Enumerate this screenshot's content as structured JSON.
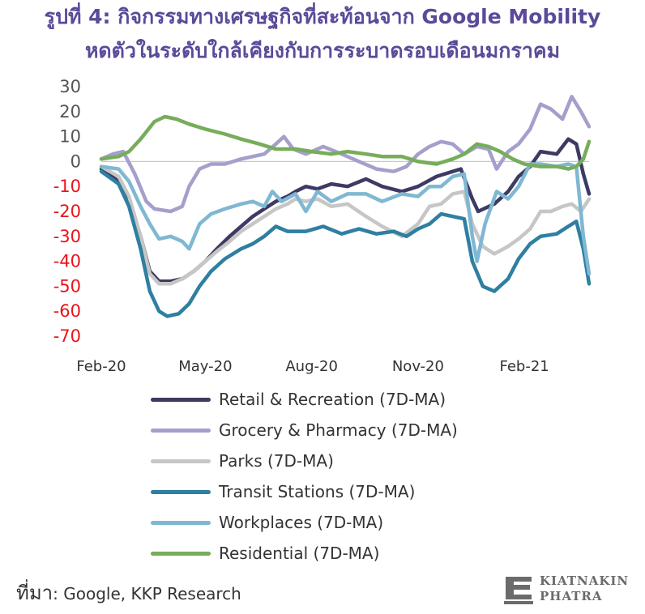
{
  "title_line1": "รูปที่ 4: กิจกรรมทางเศรษฐกิจที่สะท้อนจาก Google Mobility",
  "title_line2": "หดตัวในระดับใกล้เคียงกับการระบาดรอบเดือนมกราคม",
  "source_prefix": "ที่มา",
  "source_text": ": Google, KKP Research",
  "logo": {
    "line1": "KIATNAKIN",
    "line2": "PHATRA",
    "icon": "kkp-logo-icon"
  },
  "chart_data": {
    "type": "line",
    "ylim": [
      -70,
      30
    ],
    "yticks": [
      "30",
      "20",
      "10",
      "0",
      "-10",
      "-20",
      "-30",
      "-40",
      "-50",
      "-60",
      "-70"
    ],
    "positive_tick_color": "#555555",
    "negative_tick_color": "#e8141b",
    "x_start": "2020-02-15",
    "x_end": "2021-04-12",
    "xticks": [
      {
        "date": "2020-02-15",
        "label": "Feb-20"
      },
      {
        "date": "2020-05-15",
        "label": "May-20"
      },
      {
        "date": "2020-08-15",
        "label": "Aug-20"
      },
      {
        "date": "2020-11-15",
        "label": "Nov-20"
      },
      {
        "date": "2021-02-15",
        "label": "Feb-21"
      }
    ],
    "grid": false,
    "legend_position": "bottom",
    "series": [
      {
        "name": "Retail & Recreation (7D-MA)",
        "color": "#3d3a63",
        "points": [
          [
            "2020-02-15",
            -3
          ],
          [
            "2020-03-01",
            -8
          ],
          [
            "2020-03-10",
            -15
          ],
          [
            "2020-03-20",
            -30
          ],
          [
            "2020-03-28",
            -44
          ],
          [
            "2020-04-05",
            -48
          ],
          [
            "2020-04-15",
            -48
          ],
          [
            "2020-04-25",
            -47
          ],
          [
            "2020-05-05",
            -44
          ],
          [
            "2020-05-15",
            -40
          ],
          [
            "2020-05-25",
            -35
          ],
          [
            "2020-06-05",
            -30
          ],
          [
            "2020-06-15",
            -26
          ],
          [
            "2020-06-25",
            -22
          ],
          [
            "2020-07-05",
            -19
          ],
          [
            "2020-07-15",
            -16
          ],
          [
            "2020-07-25",
            -14
          ],
          [
            "2020-08-01",
            -12
          ],
          [
            "2020-08-10",
            -10
          ],
          [
            "2020-08-20",
            -11
          ],
          [
            "2020-09-01",
            -9
          ],
          [
            "2020-09-15",
            -10
          ],
          [
            "2020-10-01",
            -7
          ],
          [
            "2020-10-15",
            -10
          ],
          [
            "2020-11-01",
            -12
          ],
          [
            "2020-11-15",
            -10
          ],
          [
            "2020-12-01",
            -6
          ],
          [
            "2020-12-15",
            -4
          ],
          [
            "2020-12-22",
            -3
          ],
          [
            "2021-01-01",
            -15
          ],
          [
            "2021-01-06",
            -20
          ],
          [
            "2021-01-20",
            -17
          ],
          [
            "2021-02-01",
            -12
          ],
          [
            "2021-02-10",
            -6
          ],
          [
            "2021-02-20",
            -2
          ],
          [
            "2021-03-01",
            4
          ],
          [
            "2021-03-15",
            3
          ],
          [
            "2021-03-25",
            9
          ],
          [
            "2021-04-01",
            7
          ],
          [
            "2021-04-07",
            -5
          ],
          [
            "2021-04-12",
            -13
          ]
        ]
      },
      {
        "name": "Grocery & Pharmacy (7D-MA)",
        "color": "#a49fcb",
        "points": [
          [
            "2020-02-15",
            1
          ],
          [
            "2020-02-25",
            3
          ],
          [
            "2020-03-05",
            4
          ],
          [
            "2020-03-15",
            -5
          ],
          [
            "2020-03-25",
            -16
          ],
          [
            "2020-04-01",
            -19
          ],
          [
            "2020-04-15",
            -20
          ],
          [
            "2020-04-25",
            -18
          ],
          [
            "2020-05-01",
            -10
          ],
          [
            "2020-05-10",
            -3
          ],
          [
            "2020-05-20",
            -1
          ],
          [
            "2020-06-01",
            -1
          ],
          [
            "2020-06-15",
            1
          ],
          [
            "2020-06-25",
            2
          ],
          [
            "2020-07-05",
            3
          ],
          [
            "2020-07-15",
            7
          ],
          [
            "2020-07-22",
            10
          ],
          [
            "2020-07-30",
            5
          ],
          [
            "2020-08-10",
            3
          ],
          [
            "2020-08-25",
            6
          ],
          [
            "2020-09-10",
            3
          ],
          [
            "2020-09-25",
            0
          ],
          [
            "2020-10-10",
            -3
          ],
          [
            "2020-10-25",
            -4
          ],
          [
            "2020-11-05",
            -2
          ],
          [
            "2020-11-15",
            3
          ],
          [
            "2020-11-25",
            6
          ],
          [
            "2020-12-05",
            8
          ],
          [
            "2020-12-15",
            7
          ],
          [
            "2020-12-25",
            3
          ],
          [
            "2021-01-05",
            6
          ],
          [
            "2021-01-15",
            5
          ],
          [
            "2021-01-22",
            -3
          ],
          [
            "2021-02-01",
            4
          ],
          [
            "2021-02-10",
            7
          ],
          [
            "2021-02-20",
            13
          ],
          [
            "2021-03-01",
            23
          ],
          [
            "2021-03-10",
            21
          ],
          [
            "2021-03-20",
            17
          ],
          [
            "2021-03-28",
            26
          ],
          [
            "2021-04-05",
            20
          ],
          [
            "2021-04-12",
            14
          ]
        ]
      },
      {
        "name": "Parks (7D-MA)",
        "color": "#c6c6c6",
        "points": [
          [
            "2020-02-15",
            -2
          ],
          [
            "2020-03-01",
            -6
          ],
          [
            "2020-03-10",
            -14
          ],
          [
            "2020-03-20",
            -30
          ],
          [
            "2020-03-28",
            -45
          ],
          [
            "2020-04-05",
            -49
          ],
          [
            "2020-04-15",
            -49
          ],
          [
            "2020-04-25",
            -47
          ],
          [
            "2020-05-05",
            -44
          ],
          [
            "2020-05-15",
            -40
          ],
          [
            "2020-05-25",
            -36
          ],
          [
            "2020-06-05",
            -32
          ],
          [
            "2020-06-15",
            -28
          ],
          [
            "2020-06-25",
            -25
          ],
          [
            "2020-07-05",
            -22
          ],
          [
            "2020-07-15",
            -19
          ],
          [
            "2020-07-25",
            -17
          ],
          [
            "2020-08-01",
            -15
          ],
          [
            "2020-08-10",
            -16
          ],
          [
            "2020-08-20",
            -15
          ],
          [
            "2020-09-01",
            -18
          ],
          [
            "2020-09-15",
            -17
          ],
          [
            "2020-10-01",
            -22
          ],
          [
            "2020-10-15",
            -26
          ],
          [
            "2020-11-01",
            -30
          ],
          [
            "2020-11-15",
            -25
          ],
          [
            "2020-11-25",
            -18
          ],
          [
            "2020-12-05",
            -17
          ],
          [
            "2020-12-15",
            -13
          ],
          [
            "2020-12-25",
            -12
          ],
          [
            "2021-01-01",
            -25
          ],
          [
            "2021-01-10",
            -34
          ],
          [
            "2021-01-20",
            -37
          ],
          [
            "2021-02-01",
            -34
          ],
          [
            "2021-02-10",
            -31
          ],
          [
            "2021-02-20",
            -27
          ],
          [
            "2021-03-01",
            -20
          ],
          [
            "2021-03-10",
            -20
          ],
          [
            "2021-03-20",
            -18
          ],
          [
            "2021-03-28",
            -17
          ],
          [
            "2021-04-05",
            -20
          ],
          [
            "2021-04-12",
            -15
          ]
        ]
      },
      {
        "name": "Transit Stations (7D-MA)",
        "color": "#2f7fa1",
        "points": [
          [
            "2020-02-15",
            -4
          ],
          [
            "2020-03-01",
            -9
          ],
          [
            "2020-03-10",
            -18
          ],
          [
            "2020-03-20",
            -35
          ],
          [
            "2020-03-28",
            -52
          ],
          [
            "2020-04-05",
            -60
          ],
          [
            "2020-04-12",
            -62
          ],
          [
            "2020-04-22",
            -61
          ],
          [
            "2020-05-01",
            -57
          ],
          [
            "2020-05-10",
            -50
          ],
          [
            "2020-05-20",
            -44
          ],
          [
            "2020-06-01",
            -39
          ],
          [
            "2020-06-15",
            -35
          ],
          [
            "2020-06-25",
            -33
          ],
          [
            "2020-07-05",
            -30
          ],
          [
            "2020-07-15",
            -26
          ],
          [
            "2020-07-25",
            -28
          ],
          [
            "2020-08-10",
            -28
          ],
          [
            "2020-08-25",
            -26
          ],
          [
            "2020-09-10",
            -29
          ],
          [
            "2020-09-25",
            -27
          ],
          [
            "2020-10-10",
            -29
          ],
          [
            "2020-10-25",
            -28
          ],
          [
            "2020-11-05",
            -30
          ],
          [
            "2020-11-15",
            -27
          ],
          [
            "2020-11-25",
            -25
          ],
          [
            "2020-12-05",
            -21
          ],
          [
            "2020-12-15",
            -22
          ],
          [
            "2020-12-25",
            -23
          ],
          [
            "2021-01-01",
            -40
          ],
          [
            "2021-01-10",
            -50
          ],
          [
            "2021-01-20",
            -52
          ],
          [
            "2021-02-01",
            -47
          ],
          [
            "2021-02-10",
            -39
          ],
          [
            "2021-02-20",
            -33
          ],
          [
            "2021-03-01",
            -30
          ],
          [
            "2021-03-15",
            -29
          ],
          [
            "2021-03-25",
            -26
          ],
          [
            "2021-04-01",
            -24
          ],
          [
            "2021-04-07",
            -35
          ],
          [
            "2021-04-12",
            -49
          ]
        ]
      },
      {
        "name": "Workplaces (7D-MA)",
        "color": "#7fb8d2",
        "points": [
          [
            "2020-02-15",
            -2
          ],
          [
            "2020-03-01",
            -3
          ],
          [
            "2020-03-10",
            -8
          ],
          [
            "2020-03-20",
            -18
          ],
          [
            "2020-03-28",
            -25
          ],
          [
            "2020-04-05",
            -31
          ],
          [
            "2020-04-15",
            -30
          ],
          [
            "2020-04-25",
            -32
          ],
          [
            "2020-05-01",
            -35
          ],
          [
            "2020-05-10",
            -25
          ],
          [
            "2020-05-20",
            -21
          ],
          [
            "2020-06-01",
            -19
          ],
          [
            "2020-06-15",
            -17
          ],
          [
            "2020-06-25",
            -16
          ],
          [
            "2020-07-05",
            -18
          ],
          [
            "2020-07-12",
            -12
          ],
          [
            "2020-07-20",
            -16
          ],
          [
            "2020-08-01",
            -13
          ],
          [
            "2020-08-10",
            -20
          ],
          [
            "2020-08-20",
            -12
          ],
          [
            "2020-09-01",
            -16
          ],
          [
            "2020-09-15",
            -13
          ],
          [
            "2020-10-01",
            -13
          ],
          [
            "2020-10-15",
            -16
          ],
          [
            "2020-11-01",
            -13
          ],
          [
            "2020-11-15",
            -14
          ],
          [
            "2020-11-25",
            -10
          ],
          [
            "2020-12-05",
            -10
          ],
          [
            "2020-12-15",
            -6
          ],
          [
            "2020-12-25",
            -5
          ],
          [
            "2021-01-01",
            -30
          ],
          [
            "2021-01-05",
            -40
          ],
          [
            "2021-01-12",
            -25
          ],
          [
            "2021-01-22",
            -12
          ],
          [
            "2021-02-01",
            -15
          ],
          [
            "2021-02-10",
            -10
          ],
          [
            "2021-02-20",
            -1
          ],
          [
            "2021-03-01",
            -1
          ],
          [
            "2021-03-15",
            -2
          ],
          [
            "2021-03-25",
            -1
          ],
          [
            "2021-04-01",
            -2
          ],
          [
            "2021-04-07",
            -30
          ],
          [
            "2021-04-12",
            -45
          ]
        ]
      },
      {
        "name": "Residential (7D-MA)",
        "color": "#77ad5a",
        "points": [
          [
            "2020-02-15",
            1
          ],
          [
            "2020-03-01",
            2
          ],
          [
            "2020-03-10",
            4
          ],
          [
            "2020-03-20",
            9
          ],
          [
            "2020-04-01",
            16
          ],
          [
            "2020-04-10",
            18
          ],
          [
            "2020-04-20",
            17
          ],
          [
            "2020-05-01",
            15
          ],
          [
            "2020-05-15",
            13
          ],
          [
            "2020-06-01",
            11
          ],
          [
            "2020-06-15",
            9
          ],
          [
            "2020-07-01",
            7
          ],
          [
            "2020-07-15",
            5
          ],
          [
            "2020-08-01",
            5
          ],
          [
            "2020-08-15",
            4
          ],
          [
            "2020-09-01",
            3
          ],
          [
            "2020-09-15",
            4
          ],
          [
            "2020-10-01",
            3
          ],
          [
            "2020-10-15",
            2
          ],
          [
            "2020-11-01",
            2
          ],
          [
            "2020-11-15",
            0
          ],
          [
            "2020-12-01",
            -1
          ],
          [
            "2020-12-15",
            1
          ],
          [
            "2020-12-25",
            3
          ],
          [
            "2021-01-05",
            7
          ],
          [
            "2021-01-15",
            6
          ],
          [
            "2021-01-25",
            4
          ],
          [
            "2021-02-05",
            1
          ],
          [
            "2021-02-15",
            -1
          ],
          [
            "2021-03-01",
            -2
          ],
          [
            "2021-03-15",
            -2
          ],
          [
            "2021-03-25",
            -3
          ],
          [
            "2021-04-01",
            -2
          ],
          [
            "2021-04-07",
            1
          ],
          [
            "2021-04-12",
            8
          ]
        ]
      }
    ]
  }
}
